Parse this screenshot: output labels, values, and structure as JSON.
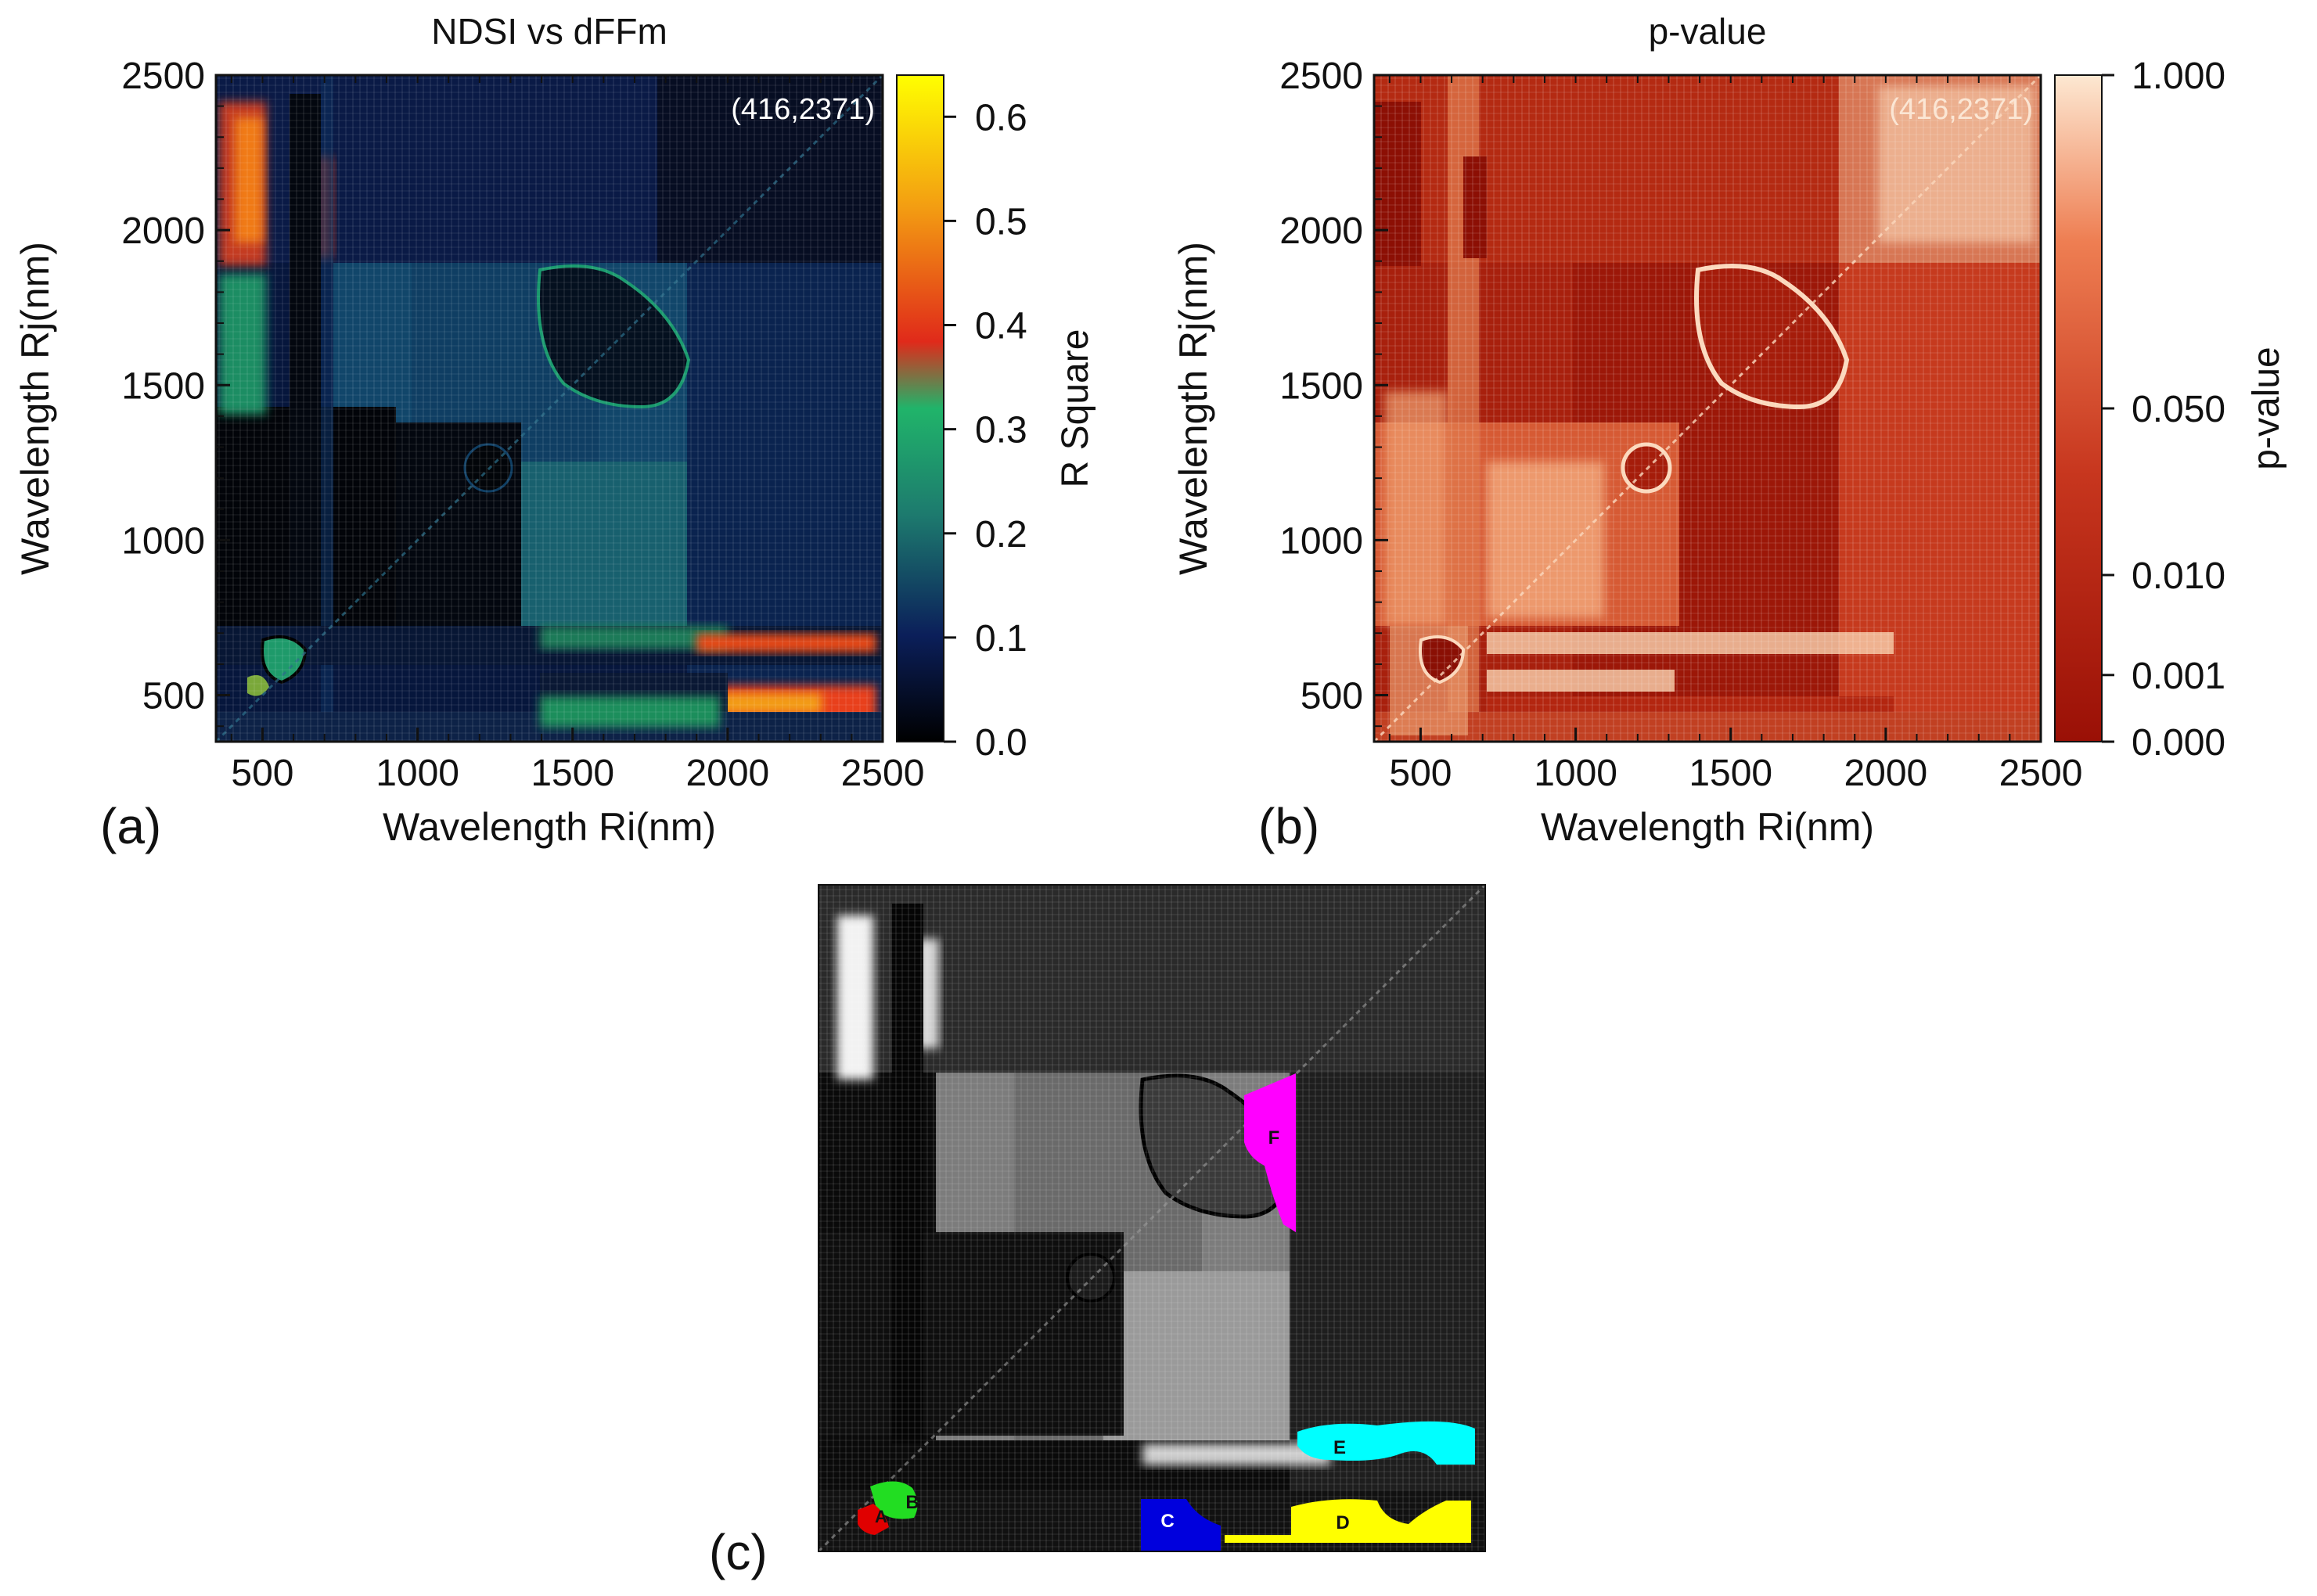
{
  "chart_data": [
    {
      "panel": "(a)",
      "type": "heatmap",
      "title": "NDSI vs dFFm",
      "xlabel": "Wavelength Ri(nm)",
      "ylabel": "Wavelength Rj(nm)",
      "xlim": [
        350,
        2500
      ],
      "ylim": [
        350,
        2500
      ],
      "xticks": [
        500,
        1000,
        1500,
        2000,
        2500
      ],
      "yticks": [
        500,
        1000,
        1500,
        2000,
        2500
      ],
      "annotation": "(416,2371)",
      "colorbar": {
        "label": "R Square",
        "range": [
          0.0,
          0.64
        ],
        "ticks": [
          "0.0",
          "0.1",
          "0.2",
          "0.3",
          "0.4",
          "0.5",
          "0.6"
        ],
        "tick_values": [
          0.0,
          0.1,
          0.2,
          0.3,
          0.4,
          0.5,
          0.6
        ],
        "colors": [
          "#000000",
          "#0b1f5a",
          "#1d7a6e",
          "#20b46a",
          "#e02a1a",
          "#f39c12",
          "#ffff00"
        ]
      },
      "regions": [
        {
          "x": [
            350,
            730
          ],
          "y": [
            1900,
            2400
          ],
          "value": 0.45
        },
        {
          "x": [
            350,
            720
          ],
          "y": [
            1400,
            1850
          ],
          "value": 0.22
        },
        {
          "x": [
            730,
            1920
          ],
          "y": [
            680,
            1850
          ],
          "value": 0.14
        },
        {
          "x": [
            1420,
            1880
          ],
          "y": [
            1480,
            1870
          ],
          "value": 0.03
        },
        {
          "x": [
            1900,
            2470
          ],
          "y": [
            400,
            560
          ],
          "value": 0.42
        },
        {
          "x": [
            1900,
            2470
          ],
          "y": [
            640,
            720
          ],
          "value": 0.38
        },
        {
          "x": [
            480,
            650
          ],
          "y": [
            520,
            690
          ],
          "value": 0.24
        },
        {
          "x": [
            1200,
            1320
          ],
          "y": [
            1200,
            1330
          ],
          "value": 0.02
        }
      ]
    },
    {
      "panel": "(b)",
      "type": "heatmap",
      "title": "p-value",
      "xlabel": "Wavelength Ri(nm)",
      "ylabel": "Wavelength Rj(nm)",
      "xlim": [
        350,
        2500
      ],
      "ylim": [
        350,
        2500
      ],
      "xticks": [
        500,
        1000,
        1500,
        2000,
        2500
      ],
      "yticks": [
        500,
        1000,
        1500,
        2000,
        2500
      ],
      "annotation": "(416,2371)",
      "colorbar": {
        "label": "p-value",
        "ticks": [
          "0.000",
          "0.001",
          "0.010",
          "0.050",
          "1.000"
        ],
        "tick_values": [
          0.0,
          0.001,
          0.01,
          0.05,
          1.0
        ],
        "colors": [
          "#9a1006",
          "#c0301a",
          "#e0603a",
          "#f4a070",
          "#fde8d2"
        ]
      }
    },
    {
      "panel": "(c)",
      "type": "heatmap",
      "title": "",
      "region_labels": [
        "A",
        "B",
        "C",
        "D",
        "E",
        "F"
      ],
      "region_colors": [
        "#e00000",
        "#22dd22",
        "#0000dd",
        "#ffff00",
        "#00ffff",
        "#ff00ff"
      ]
    }
  ]
}
